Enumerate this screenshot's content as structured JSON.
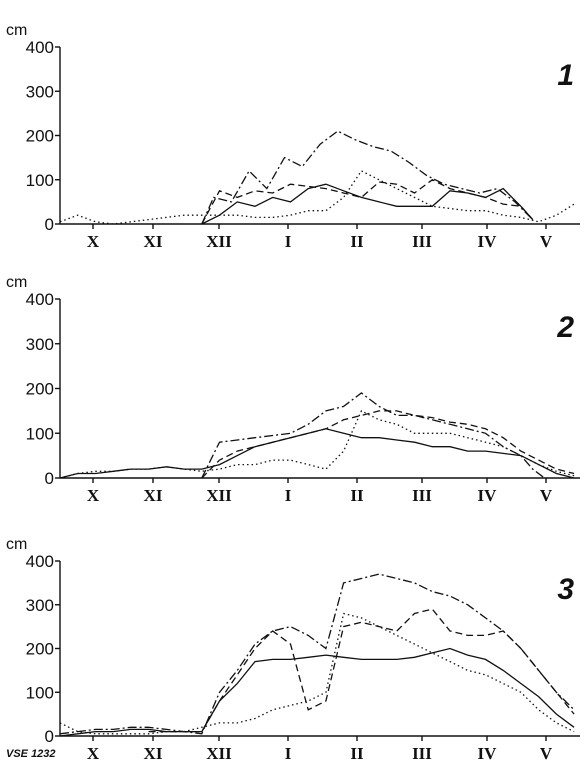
{
  "figure_ref": "VSE 1232",
  "chart_data": [
    {
      "type": "line",
      "panel_label": "1",
      "ylabel": "cm",
      "ylim": [
        0,
        400
      ],
      "yticks": [
        "0",
        "100",
        "200",
        "300",
        "400"
      ],
      "xlim": [
        0,
        8.8
      ],
      "month_labels": [
        "X",
        "XI",
        "XII",
        "I",
        "II",
        "III",
        "IV",
        "V"
      ],
      "series": [
        {
          "style": "solid",
          "x": [
            2.4,
            2.7,
            3.0,
            3.3,
            3.6,
            3.9,
            4.2,
            4.5,
            4.8,
            5.1,
            5.4,
            5.7,
            6.0,
            6.3,
            6.6,
            6.9,
            7.2,
            7.5,
            7.8,
            8.0
          ],
          "y": [
            0,
            20,
            50,
            40,
            60,
            50,
            80,
            90,
            75,
            60,
            50,
            40,
            40,
            40,
            75,
            70,
            60,
            80,
            40,
            10
          ]
        },
        {
          "style": "dashdot",
          "x": [
            2.4,
            2.6,
            2.9,
            3.2,
            3.5,
            3.8,
            4.1,
            4.4,
            4.7,
            5.0,
            5.3,
            5.6,
            5.9,
            6.2,
            6.5,
            6.8,
            7.1,
            7.4,
            7.7,
            8.0
          ],
          "y": [
            0,
            60,
            50,
            120,
            80,
            150,
            130,
            180,
            210,
            190,
            175,
            165,
            140,
            110,
            90,
            80,
            70,
            80,
            50,
            10
          ]
        },
        {
          "style": "dashed",
          "x": [
            2.4,
            2.7,
            3.0,
            3.3,
            3.6,
            3.9,
            4.2,
            4.5,
            4.8,
            5.1,
            5.4,
            5.7,
            6.0,
            6.3,
            6.6,
            6.9,
            7.2,
            7.5,
            7.8,
            8.0
          ],
          "y": [
            0,
            75,
            60,
            75,
            70,
            90,
            85,
            80,
            70,
            60,
            95,
            90,
            70,
            100,
            80,
            70,
            60,
            45,
            40,
            10
          ]
        },
        {
          "style": "dotted",
          "x": [
            0.0,
            0.3,
            0.6,
            0.9,
            1.2,
            1.5,
            1.8,
            2.1,
            2.4,
            2.7,
            3.0,
            3.3,
            3.6,
            3.9,
            4.2,
            4.5,
            4.8,
            5.1,
            5.4,
            5.7,
            6.0,
            6.3,
            6.6,
            6.9,
            7.2,
            7.5,
            7.8,
            8.1,
            8.4,
            8.7
          ],
          "y": [
            5,
            20,
            5,
            0,
            5,
            10,
            15,
            20,
            20,
            20,
            20,
            15,
            15,
            20,
            30,
            30,
            60,
            120,
            100,
            80,
            60,
            40,
            35,
            30,
            30,
            20,
            15,
            5,
            20,
            45
          ]
        }
      ]
    },
    {
      "type": "line",
      "panel_label": "2",
      "ylabel": "cm",
      "ylim": [
        0,
        400
      ],
      "yticks": [
        "0",
        "100",
        "200",
        "300",
        "400"
      ],
      "xlim": [
        0,
        8.8
      ],
      "month_labels": [
        "X",
        "XI",
        "XII",
        "I",
        "II",
        "III",
        "IV",
        "V"
      ],
      "series": [
        {
          "style": "solid",
          "x": [
            0.0,
            0.3,
            0.6,
            0.9,
            1.2,
            1.5,
            1.8,
            2.1,
            2.4,
            2.7,
            3.0,
            3.3,
            3.6,
            3.9,
            4.2,
            4.5,
            4.8,
            5.1,
            5.4,
            5.7,
            6.0,
            6.3,
            6.6,
            6.9,
            7.2,
            7.5,
            7.8,
            8.1,
            8.4,
            8.7
          ],
          "y": [
            0,
            10,
            10,
            15,
            20,
            20,
            25,
            20,
            20,
            30,
            50,
            70,
            80,
            90,
            100,
            110,
            100,
            90,
            90,
            85,
            80,
            70,
            70,
            60,
            60,
            55,
            50,
            30,
            10,
            0
          ]
        },
        {
          "style": "dashdot",
          "x": [
            2.4,
            2.7,
            3.0,
            3.3,
            3.6,
            3.9,
            4.2,
            4.5,
            4.8,
            5.1,
            5.4,
            5.7,
            6.0,
            6.3,
            6.6,
            6.9,
            7.2,
            7.5,
            7.8,
            8.0,
            8.2
          ],
          "y": [
            0,
            80,
            85,
            90,
            95,
            100,
            120,
            150,
            160,
            190,
            160,
            140,
            140,
            130,
            120,
            110,
            100,
            70,
            50,
            20,
            0
          ]
        },
        {
          "style": "dashed",
          "x": [
            2.4,
            2.7,
            3.0,
            3.3,
            3.6,
            3.9,
            4.2,
            4.5,
            4.8,
            5.1,
            5.4,
            5.7,
            6.0,
            6.3,
            6.6,
            6.9,
            7.2,
            7.5,
            7.8,
            8.1,
            8.4,
            8.7
          ],
          "y": [
            0,
            40,
            60,
            70,
            80,
            90,
            100,
            110,
            130,
            140,
            150,
            150,
            140,
            135,
            125,
            120,
            110,
            90,
            60,
            40,
            20,
            10
          ]
        },
        {
          "style": "dotted",
          "x": [
            0.0,
            0.3,
            0.6,
            0.9,
            1.2,
            1.5,
            1.8,
            2.1,
            2.4,
            2.7,
            3.0,
            3.3,
            3.6,
            3.9,
            4.2,
            4.5,
            4.8,
            5.1,
            5.4,
            5.7,
            6.0,
            6.3,
            6.6,
            6.9,
            7.2,
            7.5,
            7.8,
            8.1,
            8.4,
            8.7
          ],
          "y": [
            0,
            10,
            15,
            15,
            20,
            20,
            25,
            20,
            15,
            20,
            30,
            30,
            40,
            40,
            30,
            20,
            60,
            150,
            130,
            120,
            100,
            100,
            100,
            90,
            80,
            70,
            50,
            30,
            15,
            5
          ]
        }
      ]
    },
    {
      "type": "line",
      "panel_label": "3",
      "ylabel": "cm",
      "ylim": [
        0,
        400
      ],
      "yticks": [
        "0",
        "100",
        "200",
        "300",
        "400"
      ],
      "xlim": [
        0,
        8.8
      ],
      "month_labels": [
        "X",
        "XI",
        "XII",
        "I",
        "II",
        "III",
        "IV",
        "V"
      ],
      "series": [
        {
          "style": "solid",
          "x": [
            0.0,
            0.3,
            0.6,
            0.9,
            1.2,
            1.5,
            1.8,
            2.1,
            2.4,
            2.7,
            3.0,
            3.3,
            3.6,
            3.9,
            4.2,
            4.5,
            4.8,
            5.1,
            5.4,
            5.7,
            6.0,
            6.3,
            6.6,
            6.9,
            7.2,
            7.5,
            7.8,
            8.1,
            8.4,
            8.7
          ],
          "y": [
            0,
            5,
            10,
            10,
            15,
            15,
            10,
            10,
            10,
            80,
            120,
            170,
            175,
            175,
            180,
            185,
            180,
            175,
            175,
            175,
            180,
            190,
            200,
            185,
            175,
            150,
            120,
            90,
            50,
            20
          ]
        },
        {
          "style": "dashdot",
          "x": [
            0.0,
            0.3,
            0.6,
            0.9,
            1.2,
            1.5,
            1.8,
            2.1,
            2.4,
            2.7,
            3.0,
            3.3,
            3.6,
            3.9,
            4.2,
            4.5,
            4.8,
            5.1,
            5.4,
            5.7,
            6.0,
            6.3,
            6.6,
            6.9,
            7.2,
            7.5,
            7.8,
            8.1,
            8.4,
            8.7
          ],
          "y": [
            5,
            10,
            15,
            15,
            20,
            20,
            15,
            10,
            5,
            100,
            150,
            210,
            240,
            250,
            230,
            200,
            350,
            360,
            370,
            360,
            350,
            330,
            320,
            300,
            270,
            240,
            200,
            150,
            100,
            60
          ]
        },
        {
          "style": "dashed",
          "x": [
            1.5,
            1.8,
            2.1,
            2.4,
            2.7,
            3.0,
            3.3,
            3.6,
            3.9,
            4.2,
            4.5,
            4.8,
            5.1,
            5.4,
            5.7,
            6.0,
            6.3,
            6.6,
            6.9,
            7.2,
            7.5,
            7.8,
            8.1,
            8.4,
            8.7
          ],
          "y": [
            10,
            10,
            10,
            10,
            80,
            140,
            200,
            240,
            210,
            60,
            80,
            250,
            260,
            250,
            240,
            280,
            290,
            240,
            230,
            230,
            240,
            200,
            150,
            100,
            50
          ]
        },
        {
          "style": "dotted",
          "x": [
            0.0,
            0.3,
            0.6,
            0.9,
            1.2,
            1.5,
            1.8,
            2.1,
            2.4,
            2.7,
            3.0,
            3.3,
            3.6,
            3.9,
            4.2,
            4.5,
            4.8,
            5.1,
            5.4,
            5.7,
            6.0,
            6.3,
            6.6,
            6.9,
            7.2,
            7.5,
            7.8,
            8.1,
            8.4,
            8.7
          ],
          "y": [
            30,
            10,
            5,
            5,
            5,
            5,
            10,
            10,
            20,
            30,
            30,
            40,
            60,
            70,
            80,
            100,
            280,
            270,
            250,
            230,
            210,
            190,
            170,
            150,
            140,
            120,
            100,
            60,
            30,
            10
          ]
        }
      ]
    }
  ]
}
